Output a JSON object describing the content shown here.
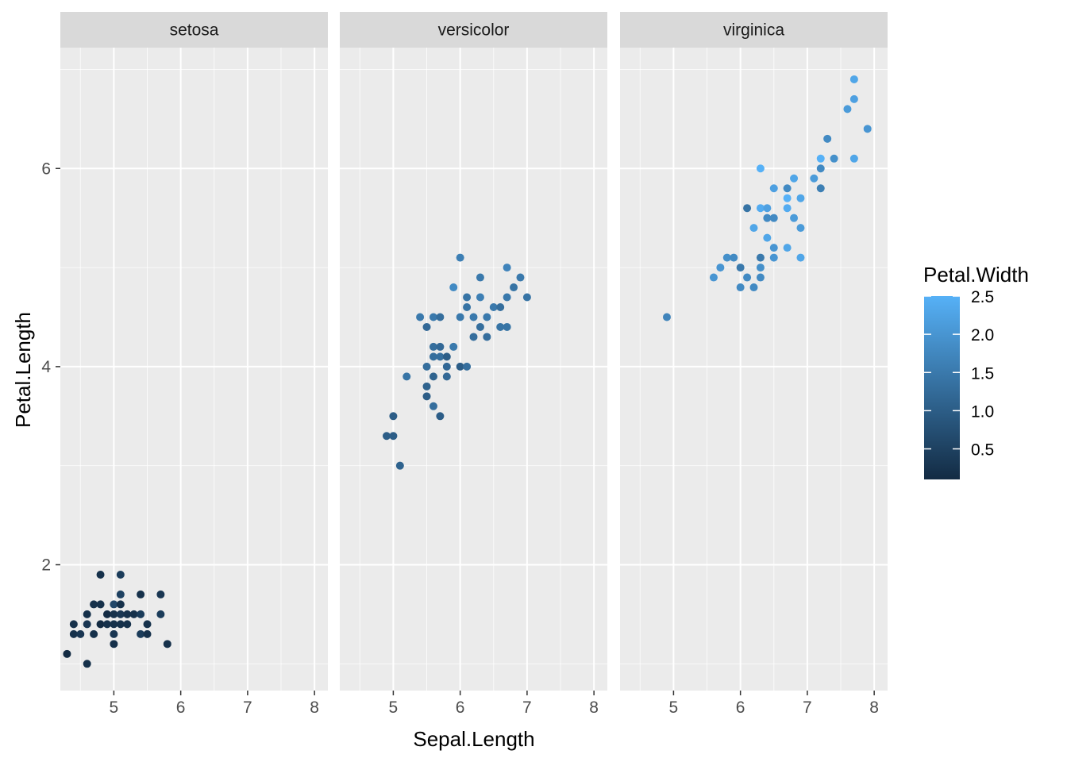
{
  "chart_data": {
    "type": "scatter",
    "xlabel": "Sepal.Length",
    "ylabel": "Petal.Length",
    "xlim": [
      4.2,
      8.2
    ],
    "ylim": [
      0.73,
      7.22
    ],
    "x_ticks": [
      5,
      6,
      7,
      8
    ],
    "y_ticks": [
      2,
      4,
      6
    ],
    "grid": true,
    "legend": {
      "title": "Petal.Width",
      "position": "right",
      "ticks": [
        0.5,
        1.0,
        1.5,
        2.0,
        2.5
      ],
      "tick_labels": [
        "0.5",
        "1.0",
        "1.5",
        "2.0",
        "2.5"
      ],
      "range": [
        0.1,
        2.5
      ],
      "colors": {
        "low": "#132B43",
        "high": "#56B1F7"
      }
    },
    "colors": {
      "panel_bg": "#EBEBEB",
      "strip_bg": "#D9D9D9",
      "grid": "#FFFFFF",
      "axis_text": "#4D4D4D",
      "strip_text": "#1A1A1A"
    },
    "facets": [
      {
        "name": "setosa",
        "points": [
          [
            4.3,
            1.1,
            0.1
          ],
          [
            4.4,
            1.4,
            0.2
          ],
          [
            4.4,
            1.3,
            0.2
          ],
          [
            4.5,
            1.3,
            0.3
          ],
          [
            4.6,
            1.0,
            0.2
          ],
          [
            4.6,
            1.4,
            0.3
          ],
          [
            4.6,
            1.5,
            0.2
          ],
          [
            4.7,
            1.3,
            0.2
          ],
          [
            4.7,
            1.6,
            0.2
          ],
          [
            4.8,
            1.4,
            0.1
          ],
          [
            4.8,
            1.6,
            0.2
          ],
          [
            4.8,
            1.9,
            0.2
          ],
          [
            4.9,
            1.4,
            0.2
          ],
          [
            4.9,
            1.5,
            0.1
          ],
          [
            5.0,
            1.4,
            0.2
          ],
          [
            5.0,
            1.5,
            0.2
          ],
          [
            5.0,
            1.6,
            0.6
          ],
          [
            5.0,
            1.2,
            0.2
          ],
          [
            5.0,
            1.3,
            0.3
          ],
          [
            5.1,
            1.4,
            0.2
          ],
          [
            5.1,
            1.5,
            0.3
          ],
          [
            5.1,
            1.7,
            0.5
          ],
          [
            5.1,
            1.9,
            0.4
          ],
          [
            5.1,
            1.6,
            0.2
          ],
          [
            5.2,
            1.5,
            0.2
          ],
          [
            5.2,
            1.4,
            0.2
          ],
          [
            5.3,
            1.5,
            0.2
          ],
          [
            5.4,
            1.7,
            0.2
          ],
          [
            5.4,
            1.5,
            0.4
          ],
          [
            5.4,
            1.3,
            0.4
          ],
          [
            5.5,
            1.4,
            0.2
          ],
          [
            5.5,
            1.3,
            0.2
          ],
          [
            5.7,
            1.5,
            0.4
          ],
          [
            5.7,
            1.7,
            0.3
          ],
          [
            5.8,
            1.2,
            0.2
          ]
        ]
      },
      {
        "name": "versicolor",
        "points": [
          [
            4.9,
            3.3,
            1.0
          ],
          [
            5.0,
            3.5,
            1.0
          ],
          [
            5.0,
            3.3,
            1.0
          ],
          [
            5.1,
            3.0,
            1.1
          ],
          [
            5.2,
            3.9,
            1.4
          ],
          [
            5.4,
            4.5,
            1.5
          ],
          [
            5.5,
            4.0,
            1.3
          ],
          [
            5.5,
            4.4,
            1.2
          ],
          [
            5.5,
            3.8,
            1.1
          ],
          [
            5.5,
            3.7,
            1.0
          ],
          [
            5.6,
            4.5,
            1.5
          ],
          [
            5.6,
            3.6,
            1.3
          ],
          [
            5.6,
            4.2,
            1.3
          ],
          [
            5.6,
            4.1,
            1.3
          ],
          [
            5.6,
            3.9,
            1.1
          ],
          [
            5.7,
            4.5,
            1.3
          ],
          [
            5.7,
            3.5,
            1.0
          ],
          [
            5.7,
            4.2,
            1.2
          ],
          [
            5.7,
            4.1,
            1.3
          ],
          [
            5.8,
            4.1,
            1.0
          ],
          [
            5.8,
            3.9,
            1.2
          ],
          [
            5.8,
            4.0,
            1.2
          ],
          [
            5.9,
            4.8,
            1.8
          ],
          [
            5.9,
            4.2,
            1.5
          ],
          [
            6.0,
            4.5,
            1.5
          ],
          [
            6.0,
            5.1,
            1.6
          ],
          [
            6.0,
            4.0,
            1.0
          ],
          [
            6.1,
            4.7,
            1.4
          ],
          [
            6.1,
            4.6,
            1.4
          ],
          [
            6.1,
            4.0,
            1.3
          ],
          [
            6.2,
            4.5,
            1.5
          ],
          [
            6.2,
            4.3,
            1.3
          ],
          [
            6.3,
            4.9,
            1.5
          ],
          [
            6.3,
            4.7,
            1.6
          ],
          [
            6.3,
            4.4,
            1.3
          ],
          [
            6.4,
            4.5,
            1.5
          ],
          [
            6.4,
            4.3,
            1.3
          ],
          [
            6.5,
            4.6,
            1.5
          ],
          [
            6.6,
            4.6,
            1.3
          ],
          [
            6.6,
            4.4,
            1.4
          ],
          [
            6.7,
            4.7,
            1.5
          ],
          [
            6.7,
            4.4,
            1.4
          ],
          [
            6.7,
            5.0,
            1.7
          ],
          [
            6.8,
            4.8,
            1.4
          ],
          [
            6.9,
            4.9,
            1.5
          ],
          [
            7.0,
            4.7,
            1.4
          ]
        ]
      },
      {
        "name": "virginica",
        "points": [
          [
            4.9,
            4.5,
            1.7
          ],
          [
            5.6,
            4.9,
            2.0
          ],
          [
            5.7,
            5.0,
            2.0
          ],
          [
            5.8,
            5.1,
            1.9
          ],
          [
            5.9,
            5.1,
            1.8
          ],
          [
            6.0,
            5.0,
            1.5
          ],
          [
            6.0,
            4.8,
            1.8
          ],
          [
            6.1,
            5.6,
            1.4
          ],
          [
            6.1,
            4.9,
            1.8
          ],
          [
            6.2,
            5.4,
            2.3
          ],
          [
            6.2,
            4.8,
            1.8
          ],
          [
            6.3,
            6.0,
            2.5
          ],
          [
            6.3,
            5.6,
            2.4
          ],
          [
            6.3,
            5.1,
            1.5
          ],
          [
            6.3,
            5.0,
            1.9
          ],
          [
            6.3,
            4.9,
            1.8
          ],
          [
            6.4,
            5.6,
            2.2
          ],
          [
            6.4,
            5.5,
            1.8
          ],
          [
            6.4,
            5.3,
            2.3
          ],
          [
            6.5,
            5.8,
            2.2
          ],
          [
            6.5,
            5.5,
            1.8
          ],
          [
            6.5,
            5.2,
            2.0
          ],
          [
            6.5,
            5.1,
            2.0
          ],
          [
            6.7,
            5.8,
            1.8
          ],
          [
            6.7,
            5.7,
            2.5
          ],
          [
            6.7,
            5.6,
            2.4
          ],
          [
            6.7,
            5.2,
            2.3
          ],
          [
            6.8,
            5.9,
            2.3
          ],
          [
            6.8,
            5.5,
            2.1
          ],
          [
            6.9,
            5.7,
            2.3
          ],
          [
            6.9,
            5.4,
            2.1
          ],
          [
            6.9,
            5.1,
            2.3
          ],
          [
            7.1,
            5.9,
            2.1
          ],
          [
            7.2,
            6.1,
            2.5
          ],
          [
            7.2,
            6.0,
            1.8
          ],
          [
            7.2,
            5.8,
            1.6
          ],
          [
            7.3,
            6.3,
            1.8
          ],
          [
            7.4,
            6.1,
            1.9
          ],
          [
            7.6,
            6.6,
            2.1
          ],
          [
            7.7,
            6.7,
            2.2
          ],
          [
            7.7,
            6.9,
            2.3
          ],
          [
            7.7,
            6.1,
            2.3
          ],
          [
            7.9,
            6.4,
            2.0
          ]
        ]
      }
    ]
  }
}
